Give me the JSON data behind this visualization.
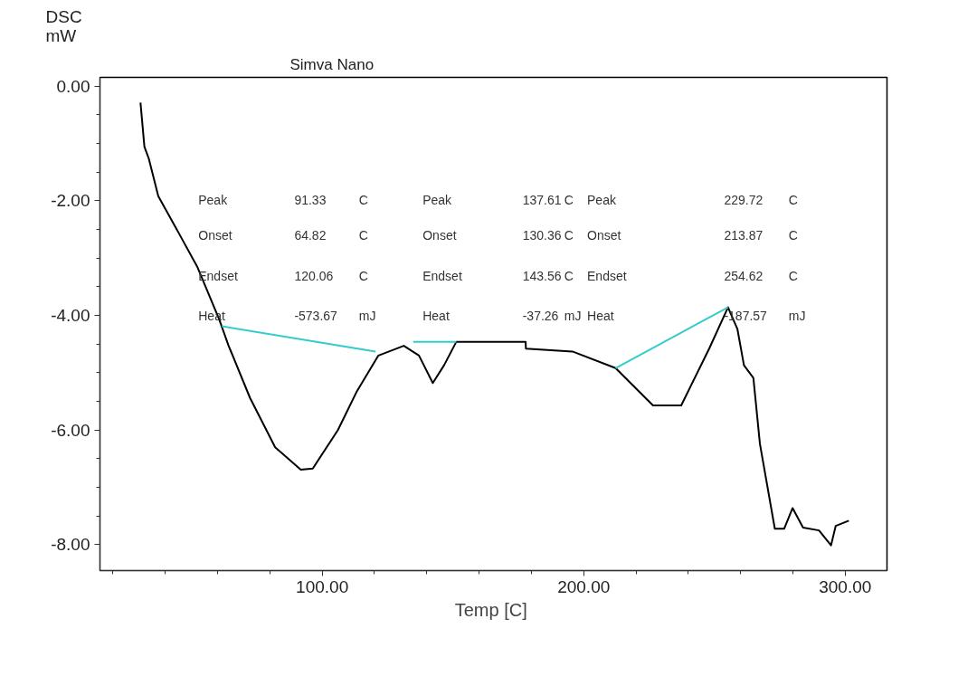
{
  "chart_data": {
    "type": "line",
    "title": "Simva Nano",
    "xlabel": "Temp  [C]",
    "ylabel": "DSC\nmW",
    "xlim": [
      15,
      316
    ],
    "ylim": [
      -8.45,
      0.15
    ],
    "xticks": [
      {
        "value": 100,
        "label": "100.00"
      },
      {
        "value": 200,
        "label": "200.00"
      },
      {
        "value": 300,
        "label": "300.00"
      }
    ],
    "yticks": [
      {
        "value": 0,
        "label": "0.00"
      },
      {
        "value": -2,
        "label": "-2.00"
      },
      {
        "value": -4,
        "label": "-4.00"
      },
      {
        "value": -6,
        "label": "-6.00"
      },
      {
        "value": -8,
        "label": "-8.00"
      }
    ],
    "grid": false,
    "line_style": "solid",
    "series": [
      {
        "color": "#000000",
        "x": [
          30.5,
          32,
          33.7,
          37.3,
          45.2,
          52.3,
          60.6,
          64.2,
          72.4,
          82,
          91.8,
          96.4,
          106,
          113.3,
          121.5,
          131.2,
          137,
          142.3,
          146.6,
          151.3,
          177.8,
          177.9,
          195.7,
          212.2,
          226.5,
          237.3,
          248,
          255.2,
          258.8,
          261.3,
          264.9,
          267.4,
          273.1,
          276.7,
          279.9,
          283.9,
          290,
          294.6,
          296.4,
          301.4
        ],
        "values": [
          -0.29,
          -1.06,
          -1.27,
          -1.92,
          -2.57,
          -3.16,
          -4.07,
          -4.53,
          -5.44,
          -6.3,
          -6.69,
          -6.67,
          -6.0,
          -5.32,
          -4.7,
          -4.53,
          -4.7,
          -5.18,
          -4.87,
          -4.46,
          -4.46,
          -4.58,
          -4.63,
          -4.92,
          -5.57,
          -5.57,
          -4.58,
          -3.86,
          -4.24,
          -4.87,
          -5.09,
          -6.24,
          -7.72,
          -7.72,
          -7.36,
          -7.7,
          -7.75,
          -8.01,
          -7.67,
          -7.58
        ]
      },
      {
        "color": "#33cccc",
        "x": [
          61.6,
          120.4,
          128,
          134.8,
          151.3,
          180,
          212.2,
          255.2
        ],
        "values": [
          -4.19,
          -4.63,
          null,
          -4.46,
          -4.46,
          null,
          -4.92,
          -3.86
        ]
      }
    ],
    "annotations": [
      "Peak",
      "91.33",
      "C",
      "Onset",
      "64.82",
      "C",
      "Endset",
      "120.06",
      "C",
      "Heat",
      "-573.67",
      "mJ",
      "Peak",
      "137.61",
      "C",
      "Onset",
      "130.36",
      "C",
      "Endset",
      "143.56",
      "C",
      "Heat",
      "-37.26",
      "mJ",
      "Peak",
      "229.72",
      "C",
      "Onset",
      "213.87",
      "C",
      "Endset",
      "254.62",
      "C",
      "Heat",
      "-187.57",
      "mJ"
    ]
  }
}
